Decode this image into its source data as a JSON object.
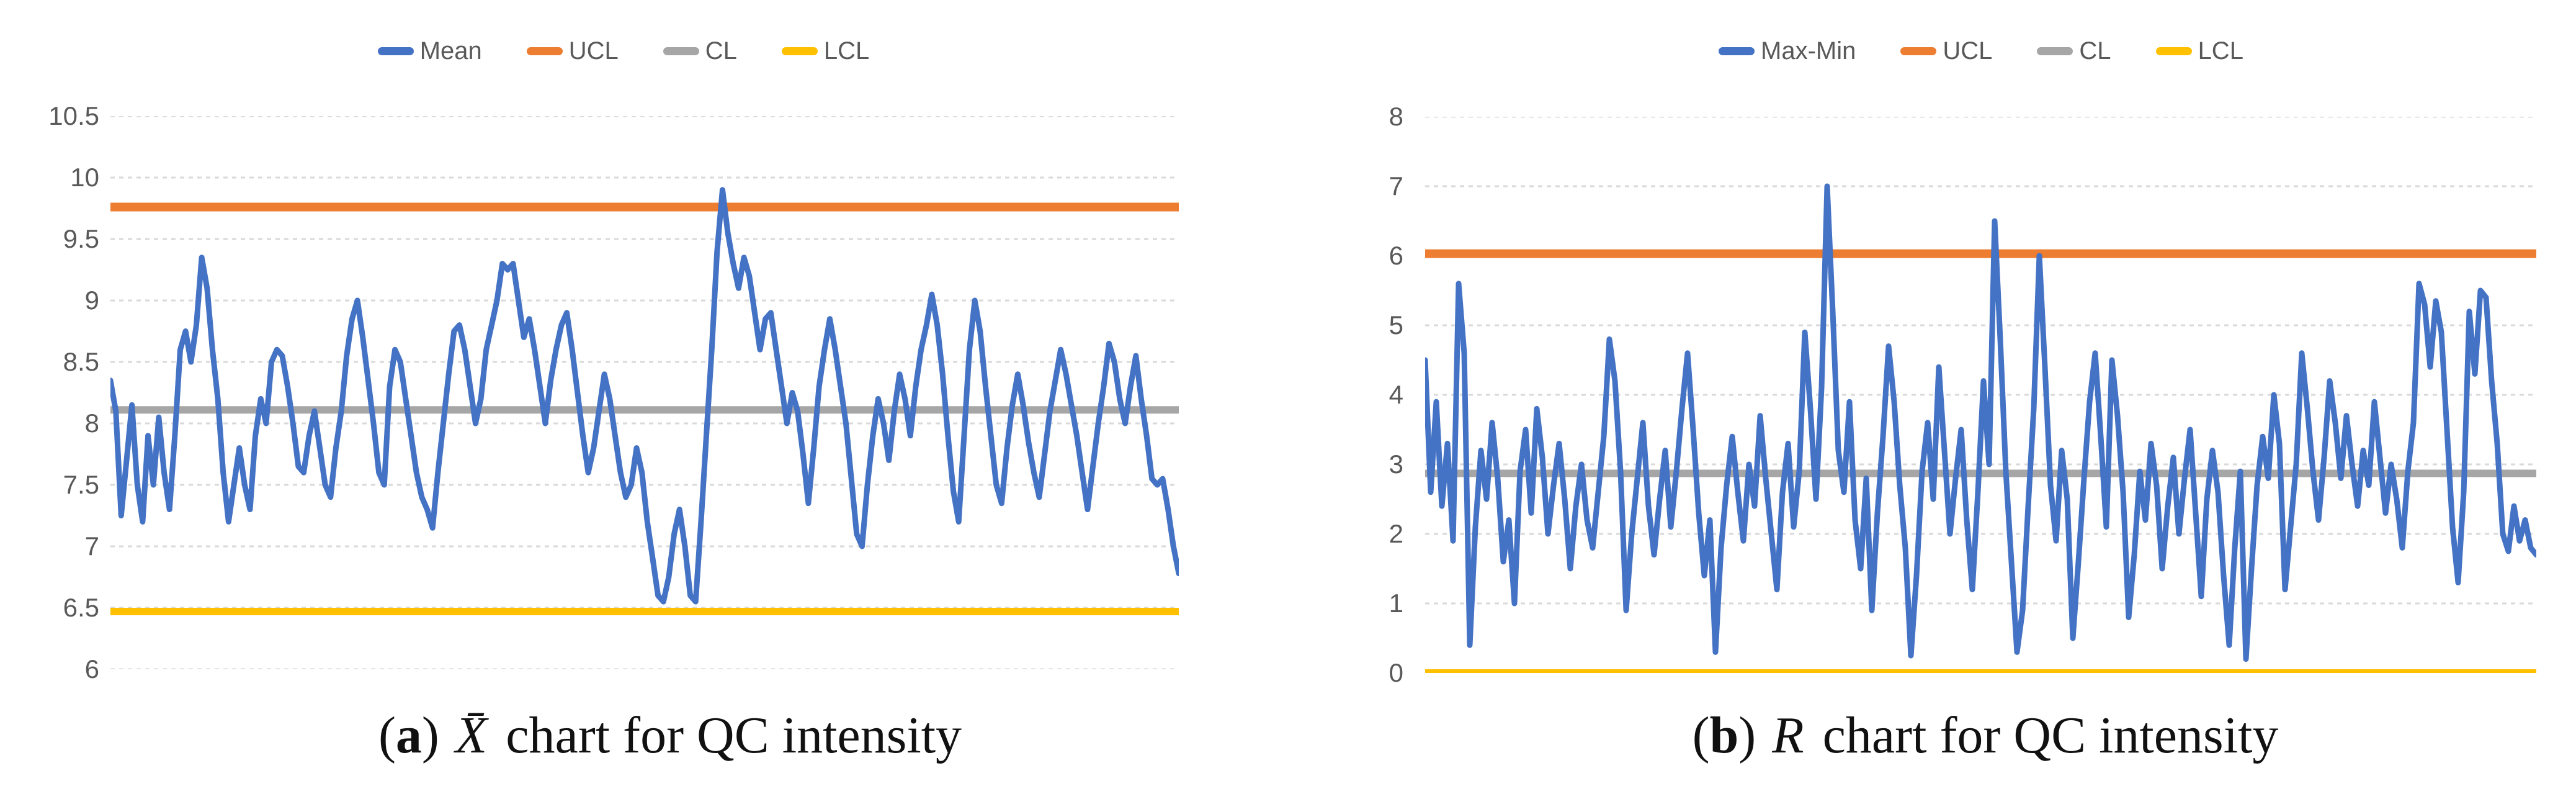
{
  "figure": {
    "background": "#ffffff",
    "gridline_color": "#D9D9D9",
    "axis_text_color": "#595959"
  },
  "chart_data": [
    {
      "type": "line",
      "title": "",
      "caption": {
        "open": "(",
        "letter": "a",
        "close": ")",
        "symbol": "X̄",
        "text": "chart for QC intensity"
      },
      "legend_position": "top",
      "grid": true,
      "ylim": [
        6,
        10.5
      ],
      "ytick_labels": [
        "10.5",
        "10",
        "9.5",
        "9",
        "8.5",
        "8",
        "7.5",
        "7",
        "6.5",
        "6"
      ],
      "series": [
        {
          "name": "Mean",
          "kind": "data",
          "color": "#4472C4",
          "values": [
            8.35,
            8.1,
            7.25,
            7.7,
            8.15,
            7.5,
            7.2,
            7.9,
            7.5,
            8.05,
            7.6,
            7.3,
            7.9,
            8.6,
            8.75,
            8.5,
            8.8,
            9.35,
            9.1,
            8.6,
            8.2,
            7.6,
            7.2,
            7.5,
            7.8,
            7.5,
            7.3,
            7.9,
            8.2,
            8.0,
            8.5,
            8.6,
            8.55,
            8.3,
            8.0,
            7.65,
            7.6,
            7.9,
            8.1,
            7.8,
            7.5,
            7.4,
            7.8,
            8.1,
            8.55,
            8.85,
            9.0,
            8.7,
            8.35,
            8.0,
            7.6,
            7.5,
            8.3,
            8.6,
            8.5,
            8.2,
            7.9,
            7.6,
            7.4,
            7.3,
            7.15,
            7.6,
            8.0,
            8.4,
            8.75,
            8.8,
            8.6,
            8.3,
            8.0,
            8.2,
            8.6,
            8.8,
            9.0,
            9.3,
            9.25,
            9.3,
            9.0,
            8.7,
            8.85,
            8.6,
            8.3,
            8.0,
            8.35,
            8.6,
            8.8,
            8.9,
            8.6,
            8.25,
            7.9,
            7.6,
            7.8,
            8.1,
            8.4,
            8.2,
            7.9,
            7.6,
            7.4,
            7.5,
            7.8,
            7.6,
            7.2,
            6.9,
            6.6,
            6.55,
            6.75,
            7.1,
            7.3,
            7.0,
            6.6,
            6.55,
            7.2,
            7.9,
            8.6,
            9.4,
            9.9,
            9.55,
            9.3,
            9.1,
            9.35,
            9.2,
            8.9,
            8.6,
            8.85,
            8.9,
            8.6,
            8.3,
            8.0,
            8.25,
            8.1,
            7.75,
            7.35,
            7.8,
            8.3,
            8.6,
            8.85,
            8.6,
            8.3,
            8.0,
            7.55,
            7.1,
            7.0,
            7.5,
            7.9,
            8.2,
            8.0,
            7.7,
            8.1,
            8.4,
            8.2,
            7.9,
            8.3,
            8.6,
            8.8,
            9.05,
            8.8,
            8.4,
            7.9,
            7.45,
            7.2,
            7.9,
            8.6,
            9.0,
            8.75,
            8.3,
            7.9,
            7.5,
            7.35,
            7.8,
            8.15,
            8.4,
            8.15,
            7.85,
            7.6,
            7.4,
            7.75,
            8.1,
            8.35,
            8.6,
            8.4,
            8.15,
            7.9,
            7.6,
            7.3,
            7.65,
            8.0,
            8.3,
            8.65,
            8.5,
            8.2,
            8.0,
            8.3,
            8.55,
            8.2,
            7.9,
            7.55,
            7.5,
            7.55,
            7.3,
            7.0,
            6.78
          ]
        },
        {
          "name": "UCL",
          "kind": "hline",
          "color": "#ED7D31",
          "value": 9.76
        },
        {
          "name": "CL",
          "kind": "hline",
          "color": "#A6A6A6",
          "value": 8.11
        },
        {
          "name": "LCL",
          "kind": "hline",
          "color": "#FFC000",
          "value": 6.47
        }
      ]
    },
    {
      "type": "line",
      "title": "",
      "caption": {
        "open": "(",
        "letter": "b",
        "close": ")",
        "symbol": "R",
        "text": "chart for QC intensity"
      },
      "legend_position": "top",
      "grid": true,
      "ylim": [
        0,
        8
      ],
      "ytick_labels": [
        "8",
        "7",
        "6",
        "5",
        "4",
        "3",
        "2",
        "1",
        "0"
      ],
      "series": [
        {
          "name": "Max-Min",
          "kind": "data",
          "color": "#4472C4",
          "values": [
            4.5,
            2.6,
            3.9,
            2.4,
            3.3,
            1.9,
            5.6,
            4.6,
            0.4,
            2.1,
            3.2,
            2.5,
            3.6,
            2.8,
            1.6,
            2.2,
            1.0,
            2.9,
            3.5,
            2.3,
            3.8,
            3.1,
            2.0,
            2.7,
            3.3,
            2.5,
            1.5,
            2.4,
            3.0,
            2.2,
            1.8,
            2.6,
            3.4,
            4.8,
            4.2,
            2.9,
            0.9,
            2.0,
            2.8,
            3.6,
            2.4,
            1.7,
            2.5,
            3.2,
            2.1,
            2.9,
            3.8,
            4.6,
            3.5,
            2.3,
            1.4,
            2.2,
            0.3,
            1.8,
            2.7,
            3.4,
            2.6,
            1.9,
            3.0,
            2.4,
            3.7,
            2.8,
            2.0,
            1.2,
            2.6,
            3.3,
            2.1,
            2.9,
            4.9,
            3.8,
            2.5,
            4.1,
            7.0,
            5.2,
            3.2,
            2.6,
            3.9,
            2.2,
            1.5,
            2.8,
            0.9,
            2.3,
            3.4,
            4.7,
            3.9,
            2.7,
            1.8,
            0.25,
            1.4,
            2.9,
            3.6,
            2.5,
            4.4,
            3.2,
            2.0,
            2.8,
            3.5,
            2.2,
            1.2,
            2.6,
            4.2,
            3.0,
            6.5,
            4.8,
            2.9,
            1.6,
            0.3,
            0.9,
            2.4,
            3.8,
            6.0,
            4.4,
            2.7,
            1.9,
            3.2,
            2.5,
            0.5,
            1.6,
            2.8,
            3.9,
            4.6,
            3.4,
            2.1,
            4.5,
            3.7,
            2.6,
            0.8,
            1.7,
            2.9,
            2.2,
            3.3,
            2.7,
            1.5,
            2.4,
            3.1,
            2.0,
            2.8,
            3.5,
            2.3,
            1.1,
            2.5,
            3.2,
            2.6,
            1.4,
            0.4,
            1.8,
            2.9,
            0.2,
            1.5,
            2.7,
            3.4,
            2.8,
            4.0,
            3.3,
            1.2,
            2.1,
            3.0,
            4.6,
            3.8,
            2.9,
            2.2,
            3.1,
            4.2,
            3.6,
            2.8,
            3.7,
            3.0,
            2.4,
            3.2,
            2.7,
            3.9,
            3.1,
            2.3,
            3.0,
            2.5,
            1.8,
            2.9,
            3.6,
            5.6,
            5.3,
            4.4,
            5.35,
            4.9,
            3.5,
            2.1,
            1.3,
            2.6,
            5.2,
            4.3,
            5.5,
            5.4,
            4.2,
            3.3,
            2.0,
            1.75,
            2.4,
            1.9,
            2.2,
            1.8,
            1.7
          ]
        },
        {
          "name": "UCL",
          "kind": "hline",
          "color": "#ED7D31",
          "value": 6.03
        },
        {
          "name": "CL",
          "kind": "hline",
          "color": "#A6A6A6",
          "value": 2.87
        },
        {
          "name": "LCL",
          "kind": "hline",
          "color": "#FFC000",
          "value": 0.0
        }
      ]
    }
  ]
}
